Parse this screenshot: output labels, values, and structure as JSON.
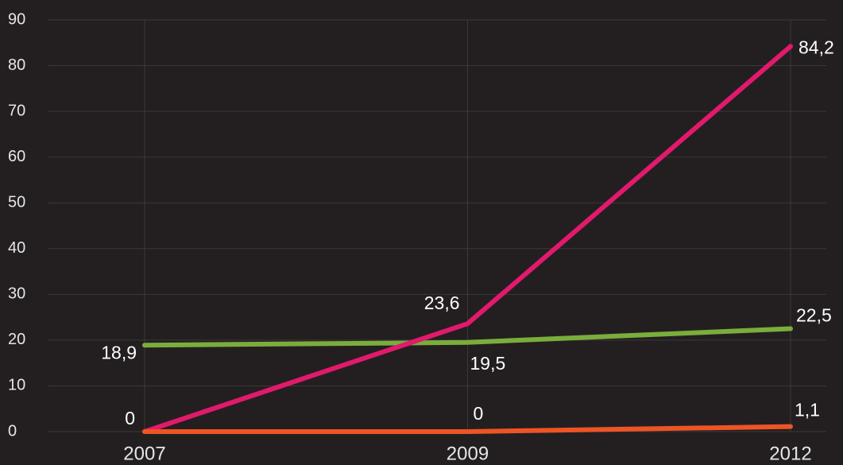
{
  "chart_data": {
    "type": "line",
    "categories": [
      "2007",
      "2009",
      "2012"
    ],
    "series": [
      {
        "color": "#7aad3c",
        "values": [
          18.9,
          19.5,
          22.5
        ],
        "value_labels": [
          "18,9",
          "19,5",
          "22,5"
        ]
      },
      {
        "color": "#e2196c",
        "values": [
          0,
          23.6,
          84.2
        ],
        "value_labels": [
          null,
          "23,6",
          "84,2"
        ]
      },
      {
        "color": "#ee5424",
        "values": [
          0,
          0,
          1.1
        ],
        "value_labels": [
          "0",
          "0",
          "1,1"
        ]
      }
    ],
    "ylim": [
      0,
      90
    ],
    "yticks": [
      0,
      10,
      20,
      30,
      40,
      50,
      60,
      70,
      80,
      90
    ],
    "grid": true
  }
}
